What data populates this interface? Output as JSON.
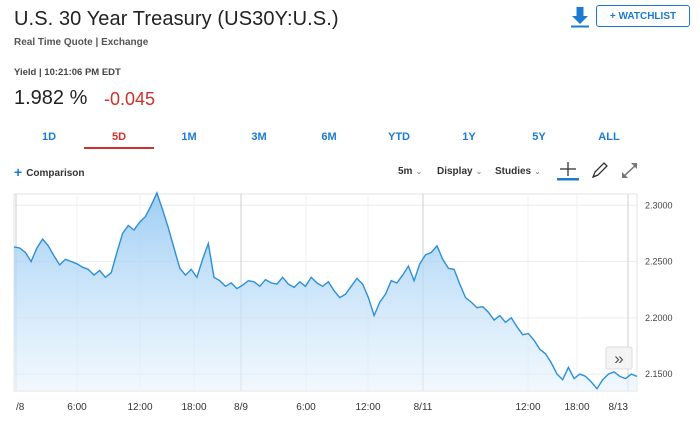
{
  "header": {
    "title": "U.S. 30 Year Treasury (US30Y:U.S.)",
    "subtitle": "Real Time Quote | Exchange",
    "watchlist_label": "+ WATCHLIST",
    "download_icon": "download-icon"
  },
  "quote": {
    "meta": "Yield | 10:21:06 PM EDT",
    "price": "1.982 %",
    "change": "-0.045",
    "change_color": "#d1312b"
  },
  "tabs": [
    {
      "label": "1D",
      "active": false
    },
    {
      "label": "5D",
      "active": true
    },
    {
      "label": "1M",
      "active": false
    },
    {
      "label": "3M",
      "active": false
    },
    {
      "label": "6M",
      "active": false
    },
    {
      "label": "YTD",
      "active": false
    },
    {
      "label": "1Y",
      "active": false
    },
    {
      "label": "5Y",
      "active": false
    },
    {
      "label": "ALL",
      "active": false
    }
  ],
  "toolbar": {
    "comparison_label": "Comparison",
    "interval_label": "5m",
    "display_label": "Display",
    "studies_label": "Studies",
    "icons": [
      "draw-line-icon",
      "pencil-icon",
      "expand-icon"
    ]
  },
  "chart_data": {
    "type": "area",
    "color": "#2b8fd9",
    "x_ticks": [
      "/8",
      "6:00",
      "12:00",
      "18:00",
      "8/9",
      "6:00",
      "12:00",
      "8/11",
      "12:00",
      "18:00",
      "8/13"
    ],
    "y_ticks": [
      "2.3000",
      "2.2500",
      "2.2000",
      "2.1500"
    ],
    "ylim": [
      2.135,
      2.31
    ],
    "grid": true,
    "y": [
      2.263,
      2.262,
      2.258,
      2.25,
      2.262,
      2.27,
      2.264,
      2.255,
      2.247,
      2.252,
      2.25,
      2.248,
      2.245,
      2.243,
      2.238,
      2.242,
      2.236,
      2.24,
      2.258,
      2.275,
      2.282,
      2.278,
      2.285,
      2.29,
      2.3,
      2.311,
      2.296,
      2.28,
      2.262,
      2.244,
      2.238,
      2.243,
      2.236,
      2.252,
      2.266,
      2.236,
      2.233,
      2.228,
      2.231,
      2.226,
      2.229,
      2.233,
      2.232,
      2.228,
      2.234,
      2.231,
      2.23,
      2.236,
      2.23,
      2.227,
      2.232,
      2.228,
      2.236,
      2.231,
      2.228,
      2.232,
      2.224,
      2.218,
      2.221,
      2.228,
      2.235,
      2.23,
      2.218,
      2.202,
      2.214,
      2.221,
      2.233,
      2.231,
      2.238,
      2.246,
      2.233,
      2.248,
      2.256,
      2.258,
      2.264,
      2.252,
      2.244,
      2.243,
      2.23,
      2.218,
      2.214,
      2.209,
      2.21,
      2.205,
      2.198,
      2.202,
      2.196,
      2.2,
      2.192,
      2.185,
      2.186,
      2.18,
      2.172,
      2.168,
      2.16,
      2.15,
      2.145,
      2.156,
      2.146,
      2.15,
      2.148,
      2.143,
      2.137,
      2.145,
      2.15,
      2.152,
      2.148,
      2.146,
      2.15,
      2.148
    ]
  },
  "chart_controls": {
    "scroll_label": "»"
  }
}
